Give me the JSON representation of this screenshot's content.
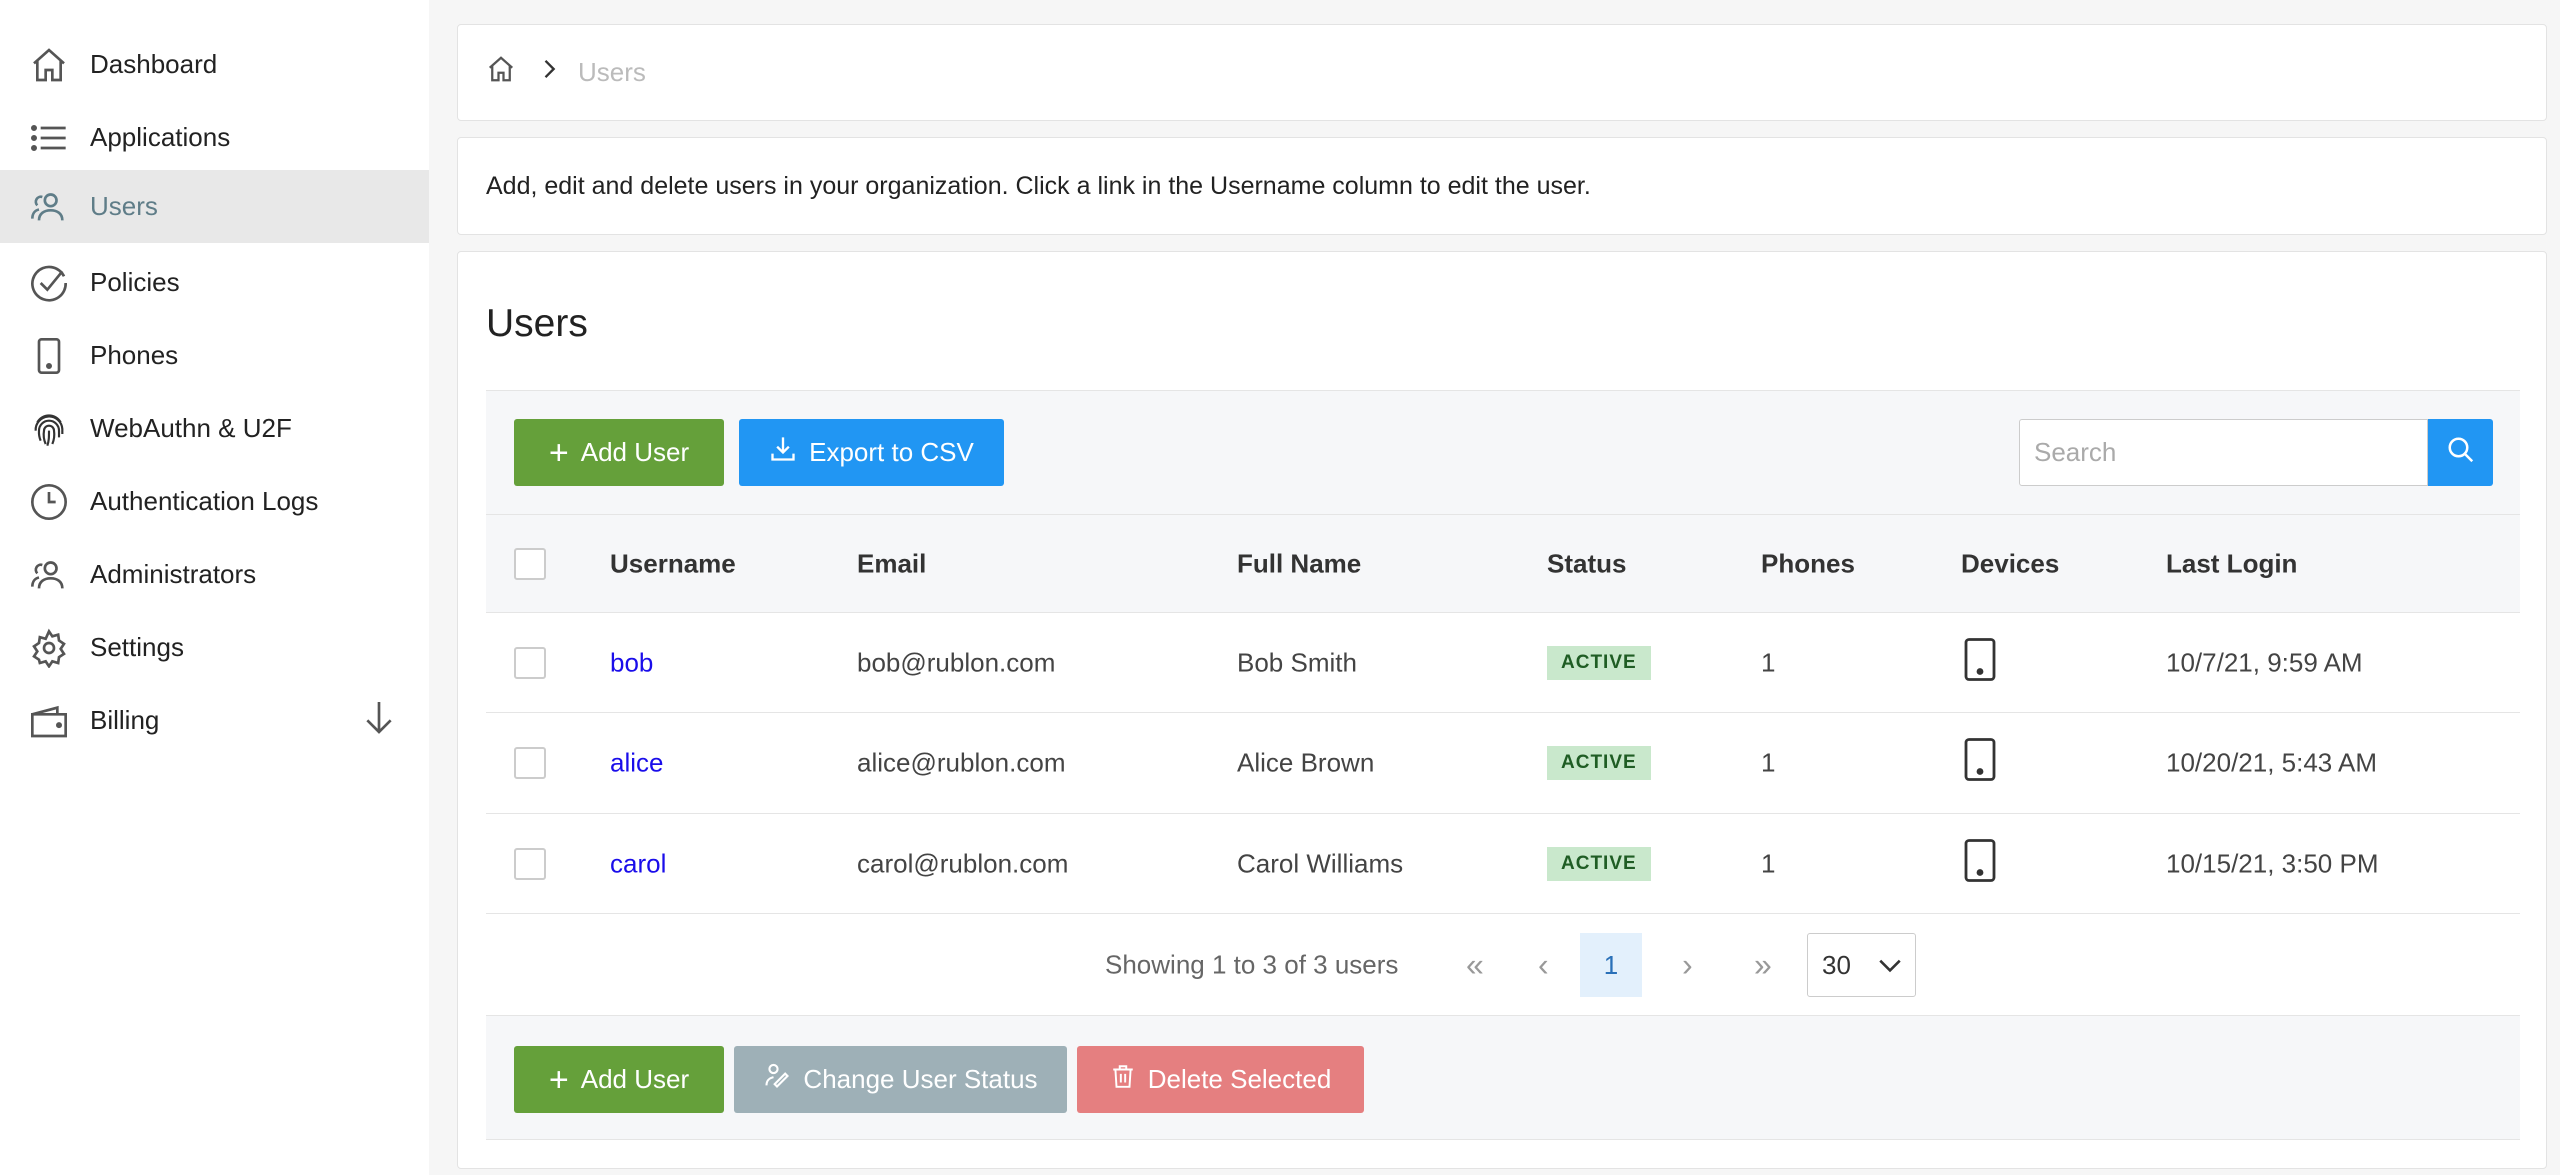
{
  "sidebar": {
    "items": [
      {
        "label": "Dashboard",
        "icon": "home-icon"
      },
      {
        "label": "Applications",
        "icon": "list-icon"
      },
      {
        "label": "Users",
        "icon": "users-icon",
        "active": true
      },
      {
        "label": "Policies",
        "icon": "check-circle-icon"
      },
      {
        "label": "Phones",
        "icon": "phone-icon"
      },
      {
        "label": "WebAuthn & U2F",
        "icon": "fingerprint-icon"
      },
      {
        "label": "Authentication Logs",
        "icon": "clock-icon"
      },
      {
        "label": "Administrators",
        "icon": "users-icon"
      },
      {
        "label": "Settings",
        "icon": "gear-icon"
      },
      {
        "label": "Billing",
        "icon": "wallet-icon"
      }
    ]
  },
  "breadcrumb": {
    "current": "Users"
  },
  "description": "Add, edit and delete users in your organization. Click a link in the Username column to edit the user.",
  "main": {
    "title": "Users",
    "toolbar": {
      "add_user": "Add User",
      "export_csv": "Export to CSV",
      "search_placeholder": "Search"
    },
    "table": {
      "columns": [
        "Username",
        "Email",
        "Full Name",
        "Status",
        "Phones",
        "Devices",
        "Last Login"
      ],
      "rows": [
        {
          "username": "bob",
          "email": "bob@rublon.com",
          "full_name": "Bob Smith",
          "status": "ACTIVE",
          "phones": "1",
          "last_login": "10/7/21, 9:59 AM"
        },
        {
          "username": "alice",
          "email": "alice@rublon.com",
          "full_name": "Alice Brown",
          "status": "ACTIVE",
          "phones": "1",
          "last_login": "10/20/21, 5:43 AM"
        },
        {
          "username": "carol",
          "email": "carol@rublon.com",
          "full_name": "Carol Williams",
          "status": "ACTIVE",
          "phones": "1",
          "last_login": "10/15/21, 3:50 PM"
        }
      ]
    },
    "pagination": {
      "summary": "Showing 1 to 3 of 3 users",
      "first": "«",
      "prev": "‹",
      "current_page": "1",
      "next": "›",
      "last": "»",
      "page_size": "30"
    },
    "bottom": {
      "add_user": "Add User",
      "change_status": "Change User Status",
      "delete_selected": "Delete Selected"
    }
  },
  "colors": {
    "green": "#65a03a",
    "blue": "#2196f3",
    "grey": "#9eb0b7",
    "red": "#e57f80",
    "link": "#1a0dea",
    "badge_bg": "#c9e8cc"
  }
}
